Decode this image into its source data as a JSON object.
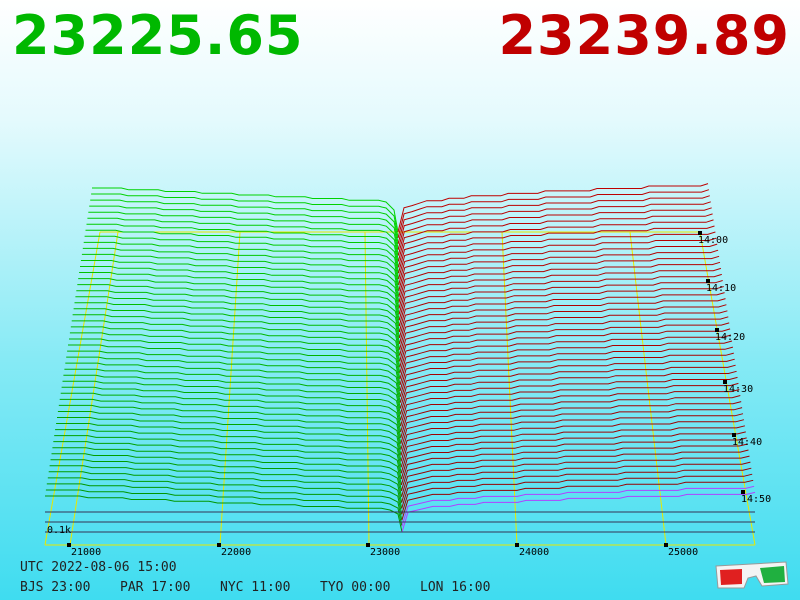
{
  "header": {
    "bid": "23225.65",
    "ask": "23239.89"
  },
  "price_axis": {
    "unit": "0.1k",
    "ticks": [
      "21000",
      "22000",
      "23000",
      "24000",
      "25000"
    ]
  },
  "time_axis": [
    "14:00",
    "14:10",
    "14:20",
    "14:30",
    "14:40",
    "14:50"
  ],
  "footer": {
    "utc": "UTC 2022-08-06 15:00",
    "zones": [
      "BJS 23:00",
      "PAR 17:00",
      "NYC 11:00",
      "TYO 00:00",
      "LON 16:00"
    ]
  }
}
